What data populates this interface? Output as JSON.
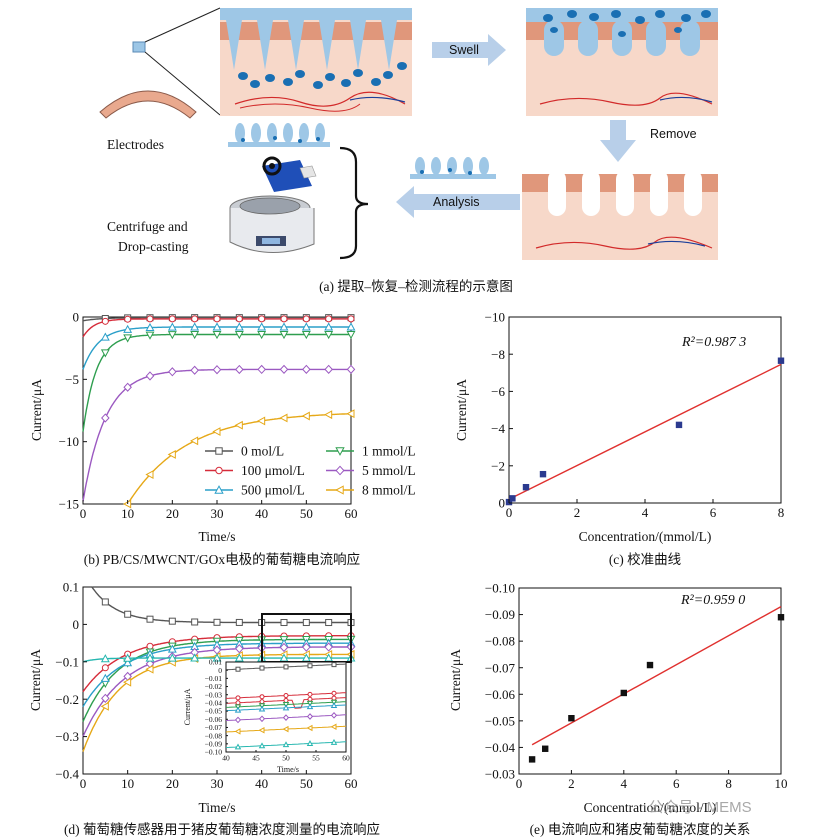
{
  "schematic": {
    "swell_label": "Swell",
    "remove_label": "Remove",
    "analysis_label": "Analysis",
    "electrodes_label": "Electrodes",
    "centrifuge_label_line1": "Centrifuge and",
    "centrifuge_label_line2": "Drop-casting",
    "caption": "(a) 提取–恢复–检测流程的示意图"
  },
  "chart_data": [
    {
      "id": "b",
      "type": "line",
      "caption": "(b) PB/CS/MWCNT/GOx电极的葡萄糖电流响应",
      "xlabel": "Time/s",
      "ylabel": "Current/μA",
      "xlim": [
        0,
        60
      ],
      "ylim": [
        -15,
        0
      ],
      "xticks": [
        0,
        10,
        20,
        30,
        40,
        50,
        60
      ],
      "yticks": [
        0,
        -5,
        -10,
        -15
      ],
      "legend": [
        {
          "label": "0 mol/L",
          "color": "#555555",
          "marker": "square"
        },
        {
          "label": "1 mmol/L",
          "color": "#2e9e4f",
          "marker": "tri-down"
        },
        {
          "label": "100 μmol/L",
          "color": "#d62c3a",
          "marker": "circle"
        },
        {
          "label": "5 mmol/L",
          "color": "#9b59c1",
          "marker": "diamond"
        },
        {
          "label": "500 μmol/L",
          "color": "#2a9fc9",
          "marker": "tri-up"
        },
        {
          "label": "8 mmol/L",
          "color": "#e6a817",
          "marker": "tri-left"
        }
      ],
      "series": [
        {
          "name": "0 mol/L",
          "color": "#555555",
          "marker": "square",
          "start": -0.3,
          "t0": 0,
          "end": -0.05,
          "k": 0.4
        },
        {
          "name": "100 μmol/L",
          "color": "#d62c3a",
          "marker": "circle",
          "start": -1.6,
          "t0": 0,
          "end": -0.15,
          "k": 0.25
        },
        {
          "name": "500 μmol/L",
          "color": "#2a9fc9",
          "marker": "tri-up",
          "start": -4.2,
          "t0": 0,
          "end": -0.8,
          "k": 0.35
        },
        {
          "name": "1 mmol/L",
          "color": "#2e9e4f",
          "marker": "tri-down",
          "start": -9.2,
          "t0": 0,
          "end": -1.4,
          "k": 0.3
        },
        {
          "name": "5 mmol/L",
          "color": "#9b59c1",
          "marker": "diamond",
          "start": -14.8,
          "t0": 0,
          "end": -4.2,
          "k": 0.5
        },
        {
          "name": "8 mmol/L",
          "color": "#e6a817",
          "marker": "tri-left",
          "start": -15,
          "t0": 10,
          "end": -7.6,
          "k": 1.3
        }
      ]
    },
    {
      "id": "c",
      "type": "scatter",
      "caption": "(c) 校准曲线",
      "xlabel": "Concentration/(mmol/L)",
      "ylabel": "Current/μA",
      "r2_label": "R²=0.987 3",
      "xlim": [
        0,
        8
      ],
      "ylim": [
        0,
        -10
      ],
      "xticks": [
        0,
        2,
        4,
        6,
        8
      ],
      "yticks": [
        0,
        -2,
        -4,
        -6,
        -8,
        -10
      ],
      "x": [
        0,
        0.1,
        0.5,
        1,
        5,
        8
      ],
      "y": [
        -0.05,
        -0.25,
        -0.85,
        -1.55,
        -4.2,
        -7.65
      ],
      "fit": {
        "x": [
          0,
          8
        ],
        "y": [
          -0.2,
          -7.45
        ]
      },
      "marker_color": "#2b3a8f",
      "line_color": "#e0312f"
    },
    {
      "id": "d",
      "type": "line",
      "caption": "(d) 葡萄糖传感器用于猪皮葡萄糖浓度测量的电流响应",
      "xlabel": "Time/s",
      "ylabel": "Current/μA",
      "xlim": [
        0,
        60
      ],
      "ylim": [
        -0.4,
        0.1
      ],
      "xticks": [
        0,
        10,
        20,
        30,
        40,
        50,
        60
      ],
      "yticks": [
        0.1,
        0,
        -0.1,
        -0.2,
        -0.3,
        -0.4
      ],
      "series": [
        {
          "name": "s0",
          "color": "#555555",
          "marker": "square",
          "start": 0.1,
          "t0": 2,
          "end": 0.005,
          "k": 0.55
        },
        {
          "name": "s1",
          "color": "#d62c3a",
          "marker": "circle",
          "start": -0.18,
          "t0": 0,
          "end": -0.03,
          "k": 0.9
        },
        {
          "name": "s2",
          "color": "#2e9e4f",
          "marker": "tri-down",
          "start": -0.26,
          "t0": 0,
          "end": -0.04,
          "k": 0.8
        },
        {
          "name": "s3",
          "color": "#2a9fc9",
          "marker": "tri-up",
          "start": -0.22,
          "t0": 0,
          "end": -0.05,
          "k": 0.85
        },
        {
          "name": "s4",
          "color": "#9b59c1",
          "marker": "diamond",
          "start": -0.3,
          "t0": 0,
          "end": -0.06,
          "k": 0.9
        },
        {
          "name": "s5",
          "color": "#e6a817",
          "marker": "tri-left",
          "start": -0.34,
          "t0": 0,
          "end": -0.08,
          "k": 0.8
        },
        {
          "name": "s6",
          "color": "#26b7b0",
          "marker": "tri-up",
          "start": -0.1,
          "t0": 0,
          "end": -0.09,
          "k": 0.3
        }
      ],
      "inset": {
        "xlabel": "Time/s",
        "ylabel": "Current/μA",
        "xlim": [
          40,
          60
        ],
        "ylim": [
          -0.1,
          0.01
        ],
        "xticks": [
          40,
          45,
          50,
          55,
          60
        ],
        "yticks": [
          0.01,
          0,
          -0.01,
          -0.02,
          -0.03,
          -0.04,
          -0.05,
          -0.06,
          -0.07,
          -0.08,
          -0.09,
          -0.1
        ],
        "ytick_labels": [
          "0.01",
          "0",
          "−0.01",
          "−0.02",
          "−0.03",
          "−0.04",
          "−0.05",
          "−0.06",
          "−0.07",
          "−0.08",
          "−0.09",
          "−0.10"
        ]
      }
    },
    {
      "id": "e",
      "type": "scatter",
      "caption": "(e) 电流响应和猪皮葡萄糖浓度的关系",
      "xlabel": "Concentration/(mmol/L)",
      "ylabel": "Current/μA",
      "r2_label": "R²=0.959 0",
      "xlim": [
        0,
        10
      ],
      "ylim": [
        -0.03,
        -0.1
      ],
      "xticks": [
        0,
        2,
        4,
        6,
        8,
        10
      ],
      "yticks": [
        -0.03,
        -0.04,
        -0.05,
        -0.06,
        -0.07,
        -0.08,
        -0.09,
        -0.1
      ],
      "ytick_labels": [
        "−0.03",
        "−0.04",
        "−0.05",
        "−0.06",
        "−0.07",
        "−0.08",
        "−0.09",
        "−0.10"
      ],
      "x": [
        0.5,
        1,
        2,
        4,
        5,
        10
      ],
      "y": [
        -0.0355,
        -0.0395,
        -0.051,
        -0.0605,
        -0.071,
        -0.089
      ],
      "fit": {
        "x": [
          0.5,
          10
        ],
        "y": [
          -0.041,
          -0.093
        ]
      },
      "marker_color": "#111111",
      "line_color": "#e0312f"
    }
  ],
  "watermark": "公众号 · MEMS"
}
